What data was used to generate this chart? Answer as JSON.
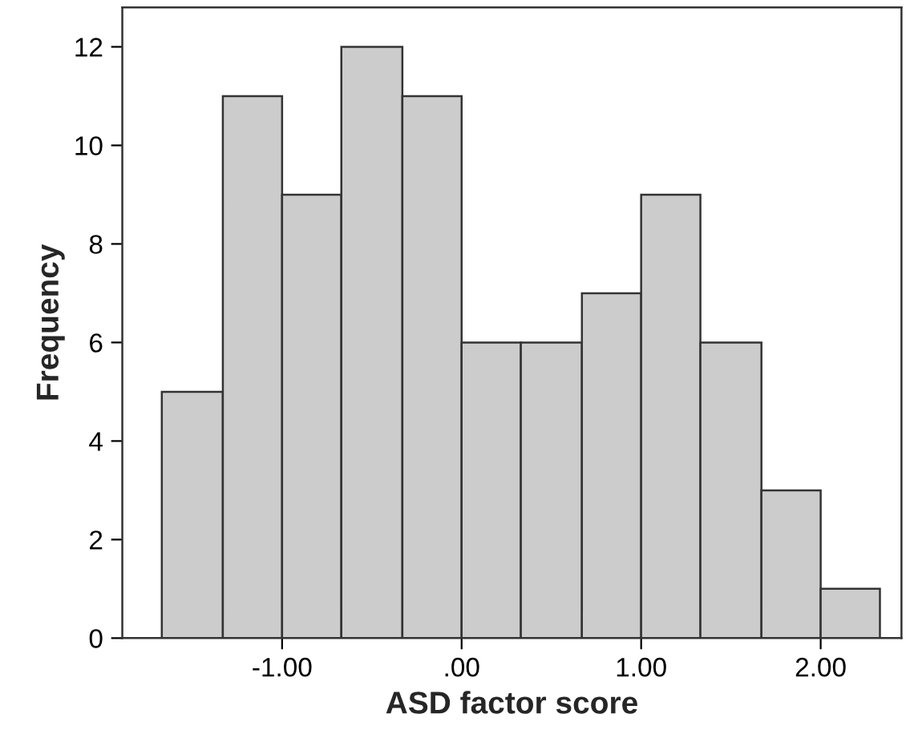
{
  "chart_data": {
    "type": "histogram",
    "xlabel": "ASD factor score",
    "ylabel": "Frequency",
    "bins": [
      -1.67,
      -1.33,
      -1.0,
      -0.67,
      -0.33,
      0.0,
      0.33,
      0.67,
      1.0,
      1.33,
      1.67,
      2.0,
      2.33
    ],
    "values": [
      5,
      11,
      9,
      12,
      11,
      6,
      6,
      7,
      9,
      6,
      3,
      1
    ],
    "color": "#cccccc",
    "xlim": [
      -1.89,
      2.45
    ],
    "ylim": [
      0,
      12.8
    ],
    "xticks": [
      {
        "value": -1,
        "label": "-1.00"
      },
      {
        "value": 0,
        "label": ".00"
      },
      {
        "value": 1,
        "label": "1.00"
      },
      {
        "value": 2,
        "label": "2.00"
      }
    ],
    "yticks": [
      0,
      2,
      4,
      6,
      8,
      10,
      12
    ],
    "grid": false
  }
}
